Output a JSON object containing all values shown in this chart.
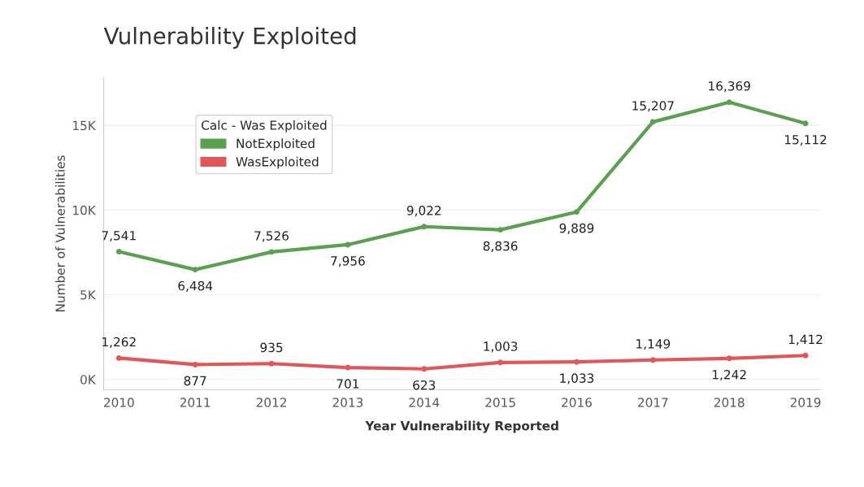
{
  "chart_data": {
    "type": "line",
    "title": "Vulnerability Exploited",
    "xlabel": "Year Vulnerability Reported",
    "ylabel": "Number of Vulnerabilities",
    "legend_title": "Calc - Was Exploited",
    "categories": [
      "2010",
      "2011",
      "2012",
      "2013",
      "2014",
      "2015",
      "2016",
      "2017",
      "2018",
      "2019"
    ],
    "series": [
      {
        "name": "NotExploited",
        "color": "#59a14f",
        "values": [
          7541,
          6484,
          7526,
          7956,
          9022,
          8836,
          9889,
          15207,
          16369,
          15112
        ],
        "value_labels": [
          "7,541",
          "6,484",
          "7,526",
          "7,956",
          "9,022",
          "8,836",
          "9,889",
          "15,207",
          "16,369",
          "15,112"
        ]
      },
      {
        "name": "WasExploited",
        "color": "#e15759",
        "values": [
          1262,
          877,
          935,
          701,
          623,
          1003,
          1033,
          1149,
          1242,
          1412
        ],
        "value_labels": [
          "1,262",
          "877",
          "935",
          "701",
          "623",
          "1,003",
          "1,033",
          "1,149",
          "1,242",
          "1,412"
        ]
      }
    ],
    "ylim": [
      -600,
      17800
    ],
    "yticks": [
      {
        "value": 0,
        "label": "0K"
      },
      {
        "value": 5000,
        "label": "5K"
      },
      {
        "value": 10000,
        "label": "10K"
      },
      {
        "value": 15000,
        "label": "15K"
      }
    ],
    "grid": "y",
    "legend": "top left",
    "marker": "circle",
    "line_style": "solid"
  }
}
